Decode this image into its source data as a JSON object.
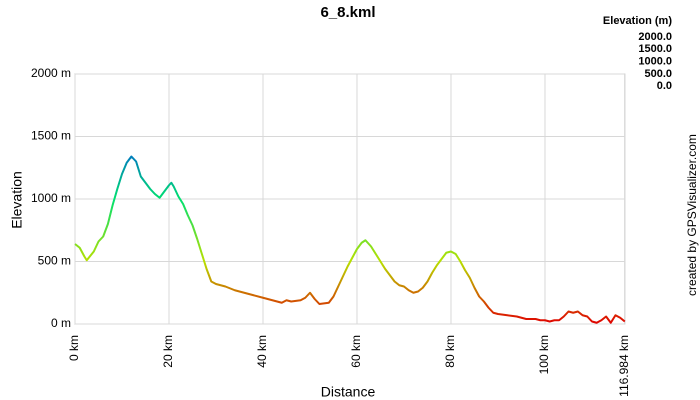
{
  "chart_data": {
    "type": "line",
    "title": "6_8.kml",
    "x_label": "Distance",
    "y_label": "Elevation",
    "credit": "created by GPSVisualizer.com",
    "grid": true,
    "xlim": [
      0,
      116.984
    ],
    "ylim": [
      0,
      2000
    ],
    "xticks": [
      {
        "value": 0,
        "label": "0 km"
      },
      {
        "value": 20,
        "label": "20 km"
      },
      {
        "value": 40,
        "label": "40 km"
      },
      {
        "value": 60,
        "label": "60 km"
      },
      {
        "value": 80,
        "label": "80 km"
      },
      {
        "value": 100,
        "label": "100 km"
      },
      {
        "value": 116.984,
        "label": "116.984 km"
      }
    ],
    "yticks": [
      {
        "value": 0,
        "label": "0 m"
      },
      {
        "value": 500,
        "label": "500 m"
      },
      {
        "value": 1000,
        "label": "1000 m"
      },
      {
        "value": 1500,
        "label": "1500 m"
      },
      {
        "value": 2000,
        "label": "2000 m"
      }
    ],
    "color_scale": {
      "title": "Elevation (m)",
      "entries": [
        {
          "value": 2000,
          "label": "2000.0",
          "color": "#e000e0"
        },
        {
          "value": 1500,
          "label": "1500.0",
          "color": "#0050e0"
        },
        {
          "value": 1000,
          "label": "1000.0",
          "color": "#00e070"
        },
        {
          "value": 500,
          "label": "500.0",
          "color": "#b8e000"
        },
        {
          "value": 0,
          "label": "0.0",
          "color": "#e00000"
        }
      ]
    },
    "x": [
      0,
      1,
      2,
      2.5,
      4,
      5,
      6,
      7,
      8,
      9,
      10,
      11,
      12,
      13,
      14,
      15,
      16,
      17,
      18,
      19,
      20,
      20.5,
      21,
      22,
      23,
      24,
      25,
      26,
      27,
      28,
      29,
      30,
      32,
      34,
      36,
      38,
      40,
      42,
      44,
      45,
      46,
      48,
      49,
      50,
      51,
      52,
      54,
      55,
      56,
      57,
      58,
      59,
      60,
      61,
      61.8,
      63,
      64,
      65,
      66,
      67,
      68,
      69,
      70,
      71,
      72,
      73,
      74,
      75,
      76,
      77,
      78,
      79,
      80,
      81,
      82,
      83,
      84,
      85,
      86,
      87,
      88,
      89,
      90,
      92,
      94,
      95,
      96,
      98,
      99,
      100,
      101,
      102,
      103,
      104,
      105,
      106,
      107,
      108,
      109,
      110,
      111,
      112,
      113,
      114,
      115,
      116,
      116.984
    ],
    "values": [
      640,
      610,
      540,
      510,
      580,
      660,
      700,
      800,
      950,
      1080,
      1200,
      1290,
      1340,
      1300,
      1180,
      1130,
      1080,
      1040,
      1010,
      1060,
      1110,
      1130,
      1100,
      1020,
      960,
      870,
      790,
      680,
      560,
      440,
      340,
      320,
      300,
      270,
      250,
      230,
      210,
      190,
      170,
      190,
      180,
      190,
      210,
      250,
      200,
      160,
      170,
      220,
      300,
      380,
      460,
      530,
      600,
      650,
      670,
      620,
      560,
      500,
      440,
      390,
      340,
      310,
      300,
      270,
      250,
      260,
      290,
      340,
      410,
      470,
      520,
      570,
      580,
      560,
      500,
      430,
      370,
      290,
      220,
      180,
      130,
      90,
      80,
      70,
      60,
      50,
      40,
      40,
      30,
      30,
      20,
      30,
      30,
      60,
      100,
      90,
      100,
      70,
      60,
      20,
      10,
      30,
      60,
      10,
      70,
      50,
      20
    ]
  }
}
